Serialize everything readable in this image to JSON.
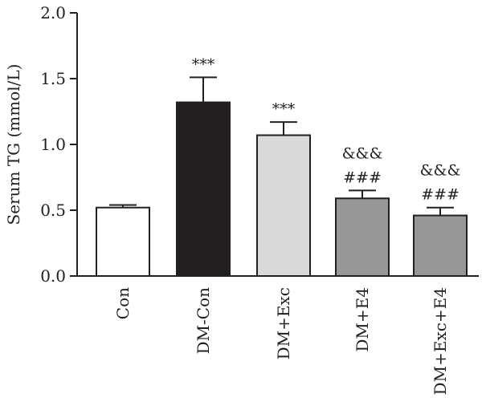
{
  "chart_data": {
    "type": "bar",
    "title": "",
    "xlabel": "",
    "ylabel": "Serum TG (mmol/L)",
    "ylim": [
      0,
      2.0
    ],
    "yticks": [
      "0.0",
      "0.5",
      "1.0",
      "1.5",
      "2.0"
    ],
    "ytick_values": [
      0,
      0.5,
      1.0,
      1.5,
      2.0
    ],
    "grid": false,
    "legend": "none",
    "categories": [
      "Con",
      "DM-Con",
      "DM+Exc",
      "DM+E4",
      "DM+Exc+E4"
    ],
    "values": [
      0.52,
      1.32,
      1.07,
      0.59,
      0.46
    ],
    "errors": [
      0.02,
      0.19,
      0.1,
      0.06,
      0.06
    ],
    "bar_colors": [
      "#ffffff",
      "#231f20",
      "#d9dadb",
      "#959799",
      "#959799"
    ],
    "annotations": [
      [],
      [
        "***"
      ],
      [
        "***"
      ],
      [
        "###",
        "&&&"
      ],
      [
        "###",
        "&&&"
      ]
    ],
    "colors": {
      "axis": "#231f20",
      "bar_edge": "#231f20"
    }
  }
}
